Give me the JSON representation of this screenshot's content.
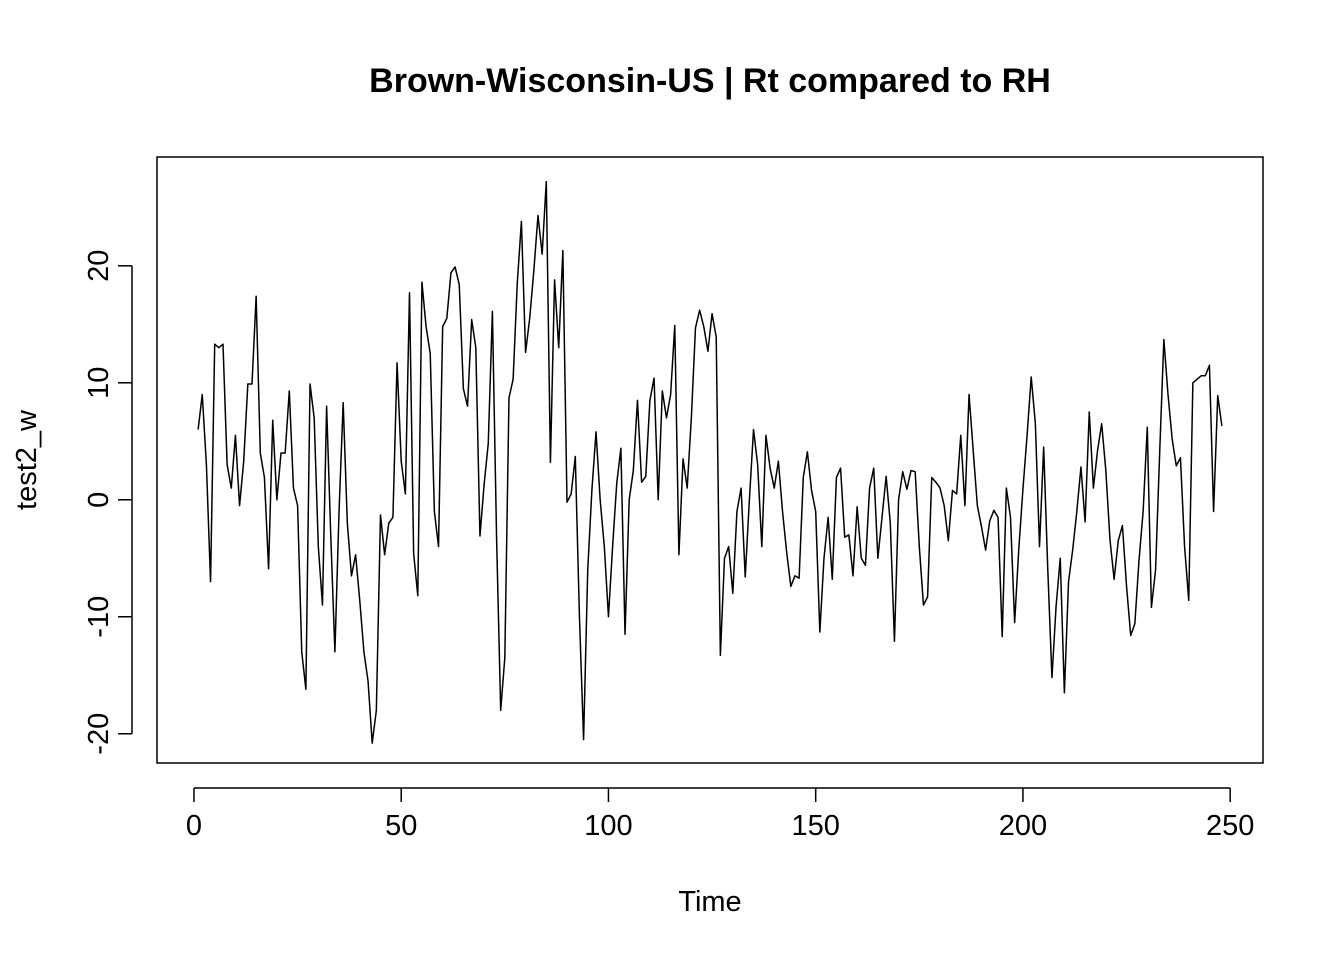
{
  "chart_data": {
    "type": "line",
    "title": "Brown-Wisconsin-US | Rt compared to RH",
    "xlabel": "Time",
    "ylabel": "test2_w",
    "xlim": [
      -8.92,
      257.92
    ],
    "ylim": [
      -22.5,
      29.3
    ],
    "x_ticks": [
      0,
      50,
      100,
      150,
      200,
      250
    ],
    "x_tick_labels": [
      "0",
      "50",
      "100",
      "150",
      "200",
      "250"
    ],
    "y_ticks": [
      -20,
      -10,
      0,
      10,
      20
    ],
    "y_tick_labels": [
      "-20",
      "-10",
      "0",
      "10",
      "20"
    ],
    "grid": false,
    "legend": "none",
    "line_color": "#000000",
    "series": [
      {
        "x_start": 1,
        "x_step": 1,
        "values": [
          6.0,
          9.0,
          3.0,
          -7.0,
          13.3,
          13.0,
          13.3,
          3.0,
          1.0,
          5.5,
          -0.5,
          3.3,
          9.9,
          9.9,
          17.4,
          4.0,
          1.9,
          -5.9,
          6.8,
          0.0,
          4.0,
          4.0,
          9.3,
          1.0,
          -0.5,
          -13.0,
          -16.2,
          9.9,
          7.0,
          -4.0,
          -9.0,
          8.0,
          -3.0,
          -13.0,
          -1.0,
          8.3,
          -2.0,
          -6.5,
          -4.7,
          -8.6,
          -13.0,
          -15.5,
          -20.8,
          -18.0,
          -1.3,
          -4.7,
          -2.0,
          -1.5,
          11.7,
          3.3,
          0.5,
          17.7,
          -4.6,
          -8.2,
          18.6,
          14.8,
          12.5,
          -1.0,
          -4.0,
          14.8,
          15.5,
          19.4,
          19.9,
          18.4,
          9.5,
          8.0,
          15.4,
          13.0,
          -3.1,
          1.3,
          4.8,
          16.1,
          -3.1,
          -18.0,
          -13.5,
          8.7,
          10.3,
          18.5,
          23.8,
          12.6,
          15.5,
          19.6,
          24.3,
          21.0,
          27.2,
          3.2,
          18.8,
          13.0,
          21.3,
          -0.2,
          0.5,
          3.7,
          -10.0,
          -20.5,
          -6.0,
          0.8,
          5.8,
          0.0,
          -4.0,
          -10.0,
          -4.0,
          1.4,
          4.4,
          -11.5,
          0.0,
          2.5,
          8.5,
          1.5,
          2.0,
          8.5,
          10.4,
          0.0,
          9.3,
          7.0,
          9.0,
          14.9,
          -4.7,
          3.5,
          1.0,
          7.0,
          14.7,
          16.2,
          14.8,
          12.7,
          15.9,
          13.9,
          -13.3,
          -5.0,
          -4.0,
          -8.0,
          -1.0,
          1.0,
          -6.6,
          0.0,
          6.0,
          3.0,
          -4.0,
          5.5,
          2.7,
          1.0,
          3.3,
          -1.0,
          -4.5,
          -7.4,
          -6.5,
          -6.7,
          1.9,
          4.1,
          0.8,
          -1.0,
          -11.3,
          -5.0,
          -1.5,
          -6.8,
          1.9,
          2.7,
          -3.2,
          -3.0,
          -6.5,
          -0.6,
          -5.0,
          -5.6,
          1.0,
          2.7,
          -5.0,
          -1.5,
          2.0,
          -2.0,
          -12.1,
          0.0,
          2.4,
          0.9,
          2.5,
          2.4,
          -4.0,
          -9.0,
          -8.3,
          1.9,
          1.5,
          1.0,
          -0.5,
          -3.5,
          0.8,
          0.5,
          5.5,
          -0.5,
          9.0,
          4.2,
          -0.5,
          -2.3,
          -4.3,
          -1.8,
          -0.9,
          -1.5,
          -11.7,
          1.0,
          -1.5,
          -10.5,
          -4.2,
          0.9,
          5.5,
          10.5,
          6.5,
          -4.0,
          4.5,
          -6.0,
          -15.2,
          -9.1,
          -5.0,
          -16.5,
          -7.0,
          -4.3,
          -1.0,
          2.8,
          -1.9,
          7.5,
          1.0,
          4.2,
          6.5,
          2.5,
          -3.4,
          -6.8,
          -3.5,
          -2.2,
          -7.4,
          -11.6,
          -10.6,
          -5.2,
          -1.0,
          6.2,
          -9.2,
          -6.0,
          4.1,
          13.7,
          9.0,
          5.2,
          2.9,
          3.6,
          -4.0,
          -8.6,
          10.0,
          10.3,
          10.6,
          10.6,
          11.5,
          -1.0,
          8.9,
          6.3
        ]
      }
    ]
  }
}
